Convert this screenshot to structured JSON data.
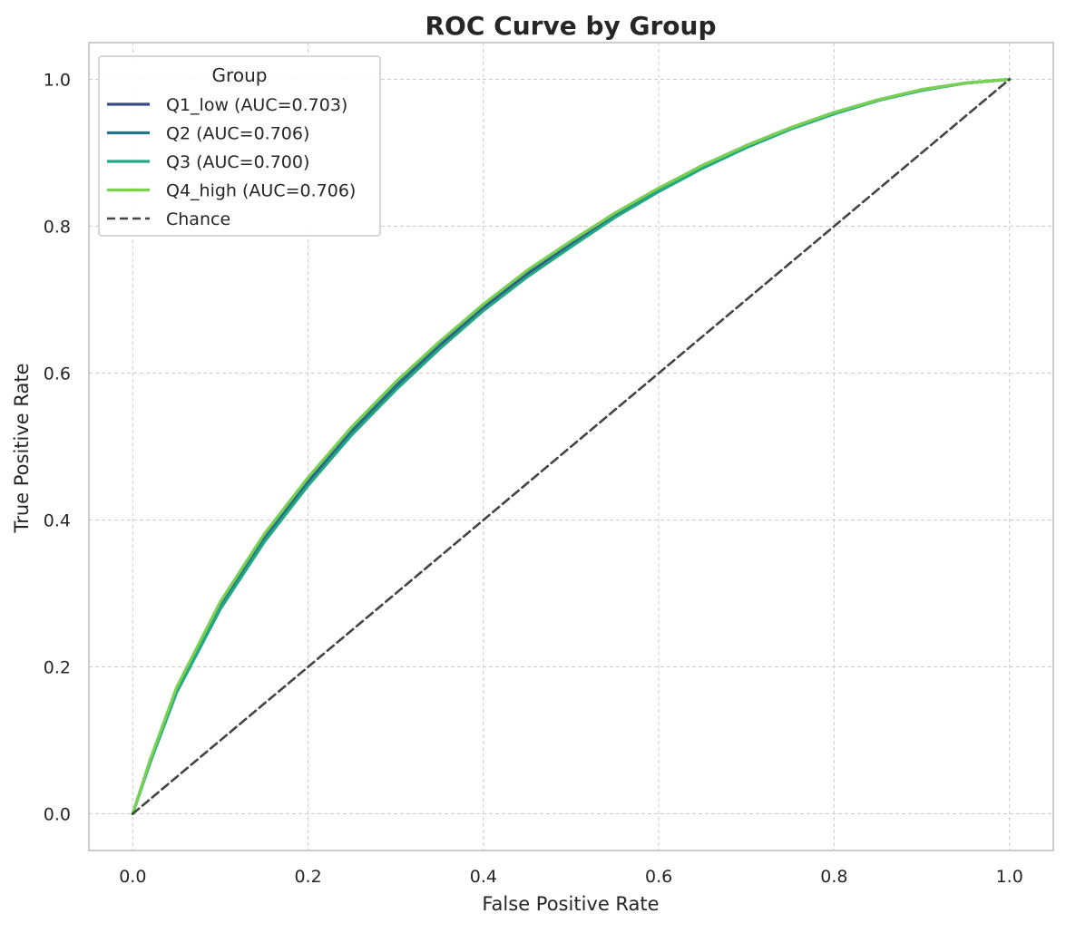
{
  "chart_data": {
    "type": "line",
    "title": "ROC Curve by Group",
    "xlabel": "False Positive Rate",
    "ylabel": "True Positive Rate",
    "xlim": [
      -0.05,
      1.05
    ],
    "ylim": [
      -0.05,
      1.05
    ],
    "xticks": [
      "0.0",
      "0.2",
      "0.4",
      "0.6",
      "0.8",
      "1.0"
    ],
    "yticks": [
      "0.0",
      "0.2",
      "0.4",
      "0.6",
      "0.8",
      "1.0"
    ],
    "grid": true,
    "legend": {
      "title": "Group",
      "position": "top-left"
    },
    "series": [
      {
        "name": "Q1_low (AUC=0.703)",
        "color": "#3b4a84",
        "x": [
          0.0,
          0.02,
          0.05,
          0.1,
          0.15,
          0.2,
          0.25,
          0.3,
          0.35,
          0.4,
          0.45,
          0.5,
          0.55,
          0.6,
          0.65,
          0.7,
          0.75,
          0.8,
          0.85,
          0.9,
          0.95,
          1.0
        ],
        "y": [
          0.0,
          0.072,
          0.168,
          0.283,
          0.374,
          0.451,
          0.52,
          0.58,
          0.637,
          0.689,
          0.735,
          0.775,
          0.815,
          0.849,
          0.881,
          0.909,
          0.933,
          0.954,
          0.972,
          0.985,
          0.995,
          1.0
        ]
      },
      {
        "name": "Q2 (AUC=0.706)",
        "color": "#23748b",
        "x": [
          0.0,
          0.02,
          0.05,
          0.1,
          0.15,
          0.2,
          0.25,
          0.3,
          0.35,
          0.4,
          0.45,
          0.5,
          0.55,
          0.6,
          0.65,
          0.7,
          0.75,
          0.8,
          0.85,
          0.9,
          0.95,
          1.0
        ],
        "y": [
          0.0,
          0.073,
          0.17,
          0.286,
          0.377,
          0.455,
          0.523,
          0.584,
          0.64,
          0.692,
          0.738,
          0.778,
          0.817,
          0.851,
          0.883,
          0.91,
          0.934,
          0.955,
          0.972,
          0.986,
          0.995,
          1.0
        ]
      },
      {
        "name": "Q3 (AUC=0.700)",
        "color": "#22a884",
        "x": [
          0.0,
          0.02,
          0.05,
          0.1,
          0.15,
          0.2,
          0.25,
          0.3,
          0.35,
          0.4,
          0.45,
          0.5,
          0.55,
          0.6,
          0.65,
          0.7,
          0.75,
          0.8,
          0.85,
          0.9,
          0.95,
          1.0
        ],
        "y": [
          0.0,
          0.07,
          0.165,
          0.279,
          0.37,
          0.447,
          0.516,
          0.577,
          0.633,
          0.685,
          0.731,
          0.772,
          0.812,
          0.847,
          0.879,
          0.907,
          0.932,
          0.953,
          0.971,
          0.985,
          0.995,
          1.0
        ]
      },
      {
        "name": "Q4_high (AUC=0.706)",
        "color": "#7ad151",
        "x": [
          0.0,
          0.02,
          0.05,
          0.1,
          0.15,
          0.2,
          0.25,
          0.3,
          0.35,
          0.4,
          0.45,
          0.5,
          0.55,
          0.6,
          0.65,
          0.7,
          0.75,
          0.8,
          0.85,
          0.9,
          0.95,
          1.0
        ],
        "y": [
          0.0,
          0.074,
          0.172,
          0.289,
          0.381,
          0.458,
          0.527,
          0.588,
          0.643,
          0.694,
          0.74,
          0.78,
          0.818,
          0.852,
          0.883,
          0.91,
          0.934,
          0.955,
          0.972,
          0.986,
          0.995,
          1.0
        ]
      },
      {
        "name": "Chance",
        "color": "#444444",
        "dashed": true,
        "x": [
          0.0,
          1.0
        ],
        "y": [
          0.0,
          1.0
        ]
      }
    ]
  }
}
